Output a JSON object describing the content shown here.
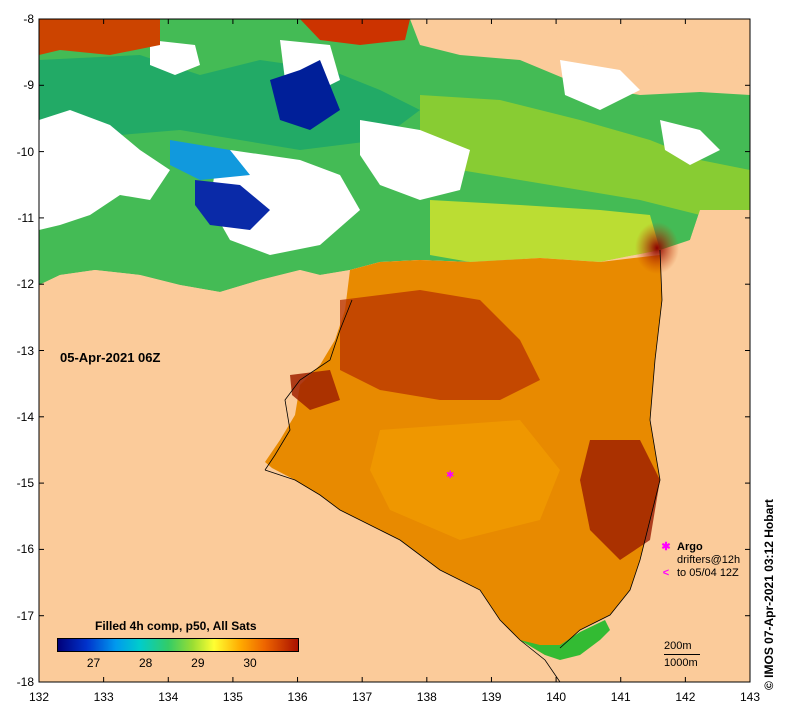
{
  "map": {
    "date_label": "05-Apr-2021 06Z",
    "colors": {
      "land": "#fbcb9a",
      "no_data": "#ffffff",
      "argo": "#ff00ff"
    },
    "x_ticks": [
      "132",
      "133",
      "134",
      "135",
      "136",
      "137",
      "138",
      "139",
      "140",
      "141",
      "142",
      "143"
    ],
    "y_ticks": [
      "-8",
      "-9",
      "-10",
      "-11",
      "-12",
      "-13",
      "-14",
      "-15",
      "-16",
      "-17",
      "-18"
    ]
  },
  "legend": {
    "title": "Filled 4h comp, p50, All Sats",
    "colorbar_labels": [
      "27",
      "28",
      "29",
      "30"
    ],
    "colorbar_range": [
      26.3,
      30.9
    ]
  },
  "argo_legend": {
    "argo_label": "Argo",
    "drifters_label": "drifters@12h",
    "period_label": "to 05/04 12Z",
    "argo_marker_icon": "asterisk-icon",
    "drifter_marker_icon": "less-than-icon"
  },
  "depth_legend": {
    "line1": "200m",
    "line2": "1000m"
  },
  "credit": "© IMOS 07-Apr-2021 03:12 Hobart"
}
